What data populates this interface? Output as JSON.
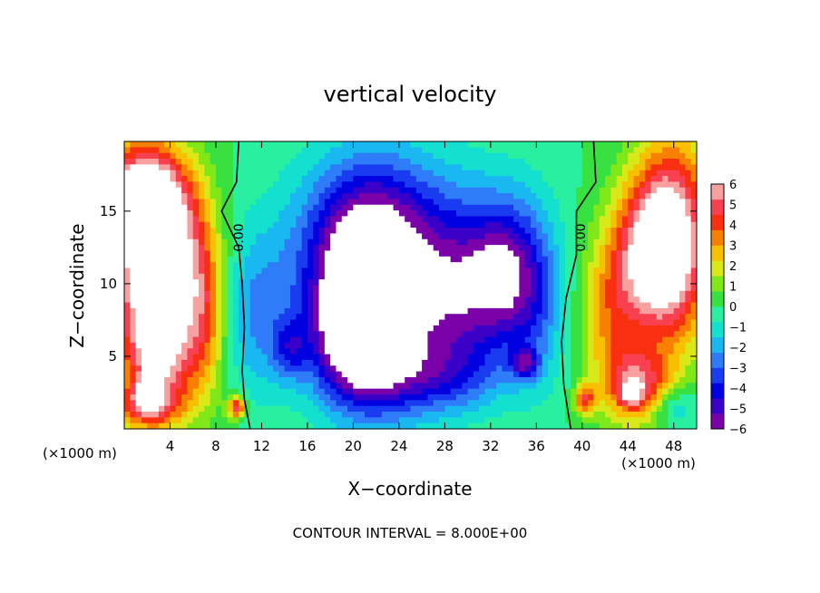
{
  "chart_data": {
    "type": "heatmap",
    "title": "vertical velocity",
    "xlabel": "X−coordinate",
    "ylabel": "Z−coordinate",
    "x_unit_left": "(×1000 m)",
    "x_unit_right": "(×1000 m)",
    "footer": "CONTOUR INTERVAL = 8.000E+00",
    "xlim": [
      0,
      50
    ],
    "ylim": [
      0,
      19.8
    ],
    "x_ticks": [
      4,
      8,
      12,
      16,
      20,
      24,
      28,
      32,
      36,
      40,
      44,
      48
    ],
    "x_tick_labels": [
      "4",
      "8",
      "12",
      "16",
      "20",
      "24",
      "28",
      "32",
      "36",
      "40",
      "44",
      "48"
    ],
    "y_ticks": [
      5,
      10,
      15
    ],
    "y_tick_labels": [
      "5",
      "10",
      "15"
    ],
    "contour_labels": [
      "0.00",
      "0.00"
    ],
    "colorbar": {
      "min": -6,
      "max": 6,
      "tick_labels": [
        "6",
        "5",
        "4",
        "3",
        "2",
        "1",
        "0",
        "−1",
        "−2",
        "−3",
        "−4",
        "−5",
        "−6"
      ],
      "colors": [
        "#7a00a8",
        "#3a00c8",
        "#0000e0",
        "#1a3cf0",
        "#2f7cf8",
        "#19b8f0",
        "#14e0d0",
        "#28f0a0",
        "#38e040",
        "#80e818",
        "#d8e818",
        "#f8c000",
        "#f88000",
        "#f83010",
        "#f84050",
        "#f8a0a0"
      ]
    },
    "blobs": [
      {
        "x": 1.5,
        "z": 13.0,
        "rx": 3.2,
        "rz": 7.0,
        "v": 6.5
      },
      {
        "x": 1.5,
        "z": 16.0,
        "rx": 3.5,
        "rz": 2.5,
        "v": 4.0
      },
      {
        "x": 4.5,
        "z": 12.0,
        "rx": 3.0,
        "rz": 6.0,
        "v": 4.5
      },
      {
        "x": 3.0,
        "z": 5.0,
        "rx": 3.0,
        "rz": 4.0,
        "v": 5.0
      },
      {
        "x": 7.0,
        "z": 8.0,
        "rx": 2.0,
        "rz": 6.0,
        "v": 3.0
      },
      {
        "x": 2.0,
        "z": 1.5,
        "rx": 3.0,
        "rz": 1.5,
        "v": 3.5
      },
      {
        "x": 9.8,
        "z": 1.5,
        "rx": 0.8,
        "rz": 0.8,
        "v": 5.0
      },
      {
        "x": 11.5,
        "z": 8.0,
        "rx": 3.0,
        "rz": 6.0,
        "v": -2.2
      },
      {
        "x": 14.5,
        "z": 5.5,
        "rx": 1.5,
        "rz": 2.0,
        "v": -2.5
      },
      {
        "x": 21.5,
        "z": 9.0,
        "rx": 5.2,
        "rz": 7.0,
        "v": -7.5
      },
      {
        "x": 20.5,
        "z": 6.0,
        "rx": 3.5,
        "rz": 3.5,
        "v": -3.5
      },
      {
        "x": 21.0,
        "z": 11.5,
        "rx": 6.0,
        "rz": 6.5,
        "v": -2.5
      },
      {
        "x": 25.0,
        "z": 15.0,
        "rx": 9.0,
        "rz": 5.0,
        "v": -1.5
      },
      {
        "x": 29.0,
        "z": 9.0,
        "rx": 3.5,
        "rz": 5.5,
        "v": -4.0
      },
      {
        "x": 33.0,
        "z": 10.5,
        "rx": 3.0,
        "rz": 5.0,
        "v": -5.0
      },
      {
        "x": 33.3,
        "z": 10.5,
        "rx": 0.6,
        "rz": 1.3,
        "v": -2.5
      },
      {
        "x": 35.0,
        "z": 4.5,
        "rx": 1.2,
        "rz": 1.0,
        "v": -3.5
      },
      {
        "x": 36.0,
        "z": 9.0,
        "rx": 2.5,
        "rz": 6.0,
        "v": -2.5
      },
      {
        "x": 27.0,
        "z": 3.5,
        "rx": 6.0,
        "rz": 2.5,
        "v": -2.5
      },
      {
        "x": 48.0,
        "z": 13.0,
        "rx": 3.5,
        "rz": 7.0,
        "v": 6.0
      },
      {
        "x": 46.0,
        "z": 12.0,
        "rx": 3.0,
        "rz": 5.0,
        "v": 4.5
      },
      {
        "x": 45.0,
        "z": 3.0,
        "rx": 2.8,
        "rz": 2.5,
        "v": 4.5
      },
      {
        "x": 44.3,
        "z": 2.5,
        "rx": 0.8,
        "rz": 0.8,
        "v": 4.0
      },
      {
        "x": 40.2,
        "z": 2.0,
        "rx": 0.9,
        "rz": 1.0,
        "v": 4.0
      },
      {
        "x": 42.5,
        "z": 8.0,
        "rx": 2.5,
        "rz": 6.0,
        "v": 3.0
      },
      {
        "x": 48.0,
        "z": 1.5,
        "rx": 2.0,
        "rz": 1.5,
        "v": -2.0
      },
      {
        "x": 2.0,
        "z": 2.5,
        "rx": 1.0,
        "rz": 1.0,
        "v": 3.0
      }
    ]
  }
}
